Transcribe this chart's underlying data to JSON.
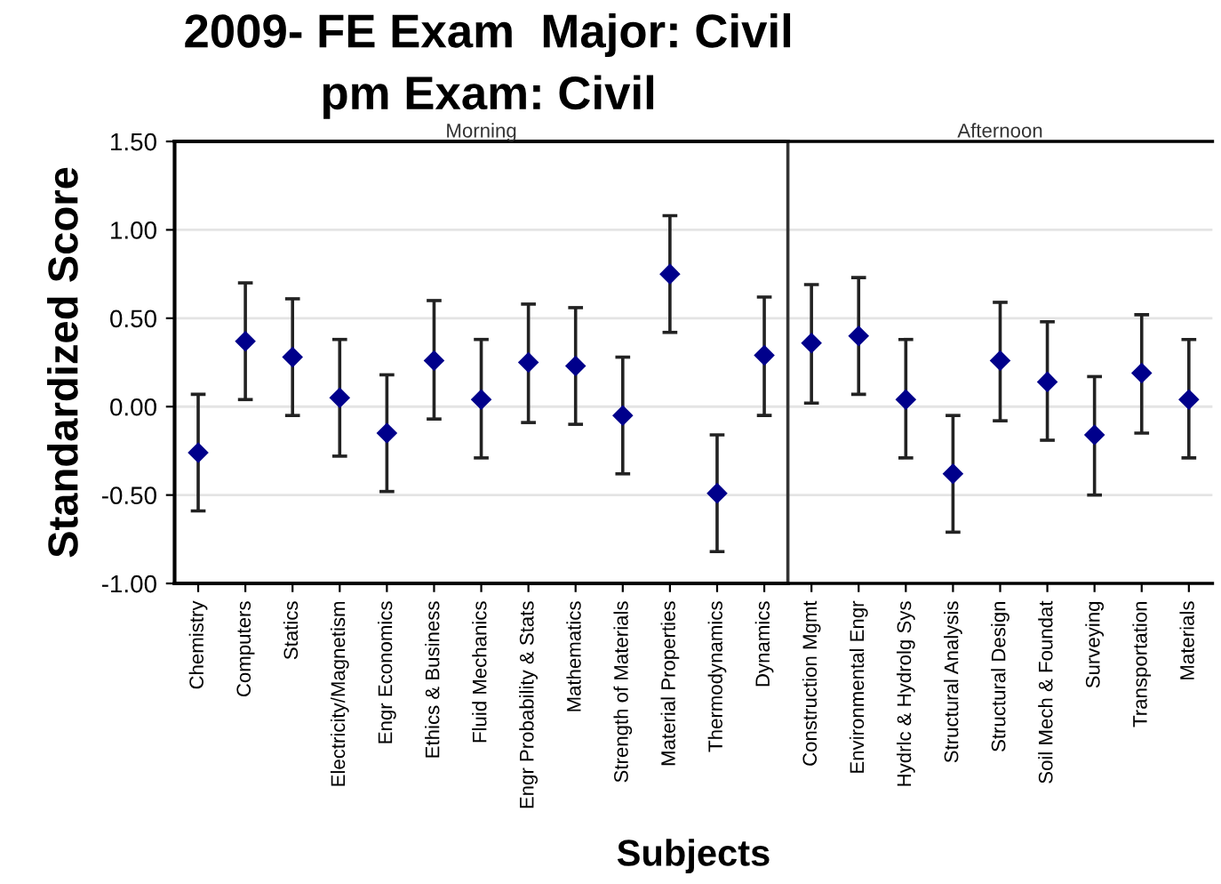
{
  "chart_data": [
    {
      "type": "scatter",
      "title": "2009- FE Exam  Major: Civil",
      "subtitle": "pm Exam: Civil",
      "ylabel": "Standardized Score",
      "categories": [
        "Chemistry",
        "Computers",
        "Statics",
        "Electricity/Magnetism",
        "Engr Economics",
        "Ethics & Business",
        "Fluid Mechanics",
        "Engr Probability & Stats",
        "Mathematics",
        "Strength of Materials",
        "Material Properties",
        "Thermodynamics",
        "Dynamics"
      ],
      "values": [
        -0.26,
        0.37,
        0.28,
        0.05,
        -0.15,
        0.26,
        0.04,
        0.25,
        0.23,
        -0.05,
        0.75,
        -0.49,
        0.29
      ],
      "errors": [
        [
          -0.59,
          0.07
        ],
        [
          0.04,
          0.7
        ],
        [
          -0.05,
          0.61
        ],
        [
          -0.28,
          0.38
        ],
        [
          -0.48,
          0.18
        ],
        [
          -0.07,
          0.6
        ],
        [
          -0.29,
          0.38
        ],
        [
          -0.09,
          0.58
        ],
        [
          -0.1,
          0.56
        ],
        [
          -0.38,
          0.28
        ],
        [
          0.42,
          1.08
        ],
        [
          -0.82,
          -0.16
        ],
        [
          -0.05,
          0.62
        ]
      ],
      "color": "#00008b",
      "marker": "diamond",
      "grid": "y",
      "ylim": [
        -1.0,
        1.5
      ],
      "yticks": [
        {
          "value": -1.0,
          "label": "-1.00"
        },
        {
          "value": -0.5,
          "label": "-0.50"
        },
        {
          "value": 0.0,
          "label": "0.00"
        },
        {
          "value": 0.5,
          "label": "0.50"
        },
        {
          "value": 1.0,
          "label": "1.00"
        },
        {
          "value": 1.5,
          "label": "1.50"
        }
      ],
      "annotations": [
        "Morning"
      ]
    },
    {
      "type": "scatter",
      "xlabel": "Subjects",
      "categories": [
        "Construction Mgmt",
        "Environmental Engr",
        "Hydrlc & Hydrolg Sys",
        "Structural Analysis",
        "Structural Design",
        "Soil Mech & Foundat",
        "Surveying",
        "Transportation",
        "Materials"
      ],
      "values": [
        0.36,
        0.4,
        0.04,
        -0.38,
        0.26,
        0.14,
        -0.16,
        0.19,
        0.04
      ],
      "errors": [
        [
          0.02,
          0.69
        ],
        [
          0.07,
          0.73
        ],
        [
          -0.29,
          0.38
        ],
        [
          -0.71,
          -0.05
        ],
        [
          -0.08,
          0.59
        ],
        [
          -0.19,
          0.48
        ],
        [
          -0.5,
          0.17
        ],
        [
          -0.15,
          0.52
        ],
        [
          -0.29,
          0.38
        ]
      ],
      "color": "#00008b",
      "marker": "diamond",
      "grid": "y",
      "ylim": [
        -1.0,
        1.5
      ],
      "yticks": [
        -1.0,
        -0.5,
        0.0,
        0.5,
        1.0,
        1.5
      ],
      "tick_labels": "x",
      "annotations": [
        "Afternoon"
      ]
    }
  ]
}
